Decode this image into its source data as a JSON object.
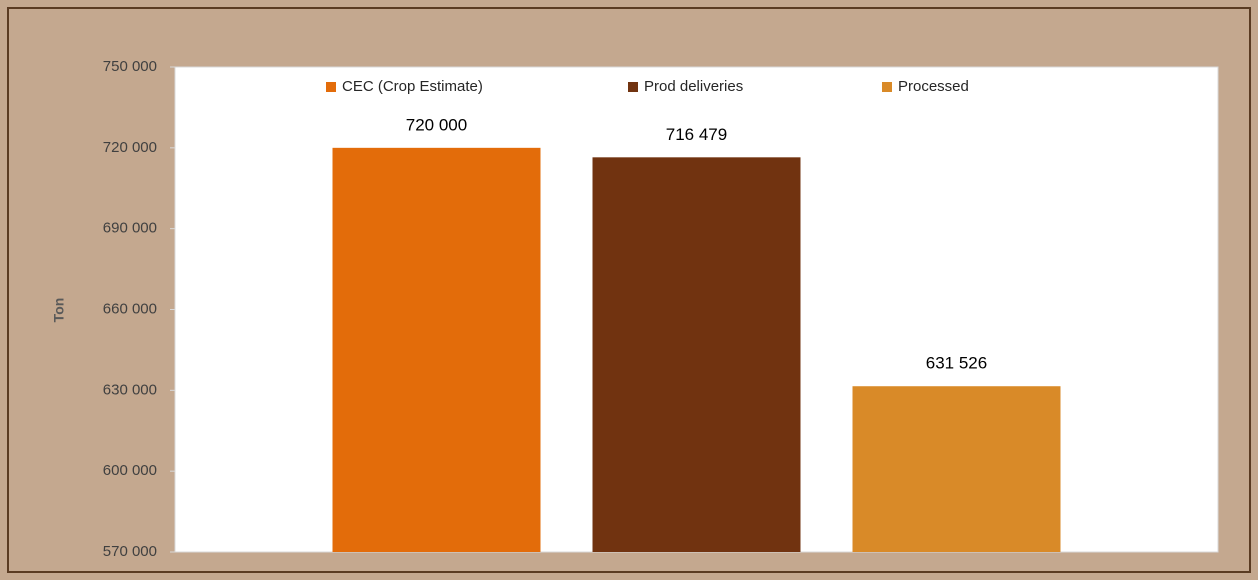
{
  "chart_data": {
    "type": "bar",
    "y_label": "Ton",
    "categories": [
      null
    ],
    "series": [
      {
        "name": "CEC (Crop Estimate)",
        "color": "#e36c0a",
        "values": [
          720000
        ],
        "value_labels": [
          "720 000"
        ]
      },
      {
        "name": "Prod deliveries",
        "color": "#713310",
        "values": [
          716479
        ],
        "value_labels": [
          "716 479"
        ]
      },
      {
        "name": "Processed",
        "color": "#d98a28",
        "values": [
          631526
        ],
        "value_labels": [
          "631 526"
        ]
      }
    ],
    "ylim": [
      570000,
      750000
    ],
    "yticks": [
      {
        "value": 570000,
        "label": "570 000"
      },
      {
        "value": 600000,
        "label": "600 000"
      },
      {
        "value": 630000,
        "label": "630 000"
      },
      {
        "value": 660000,
        "label": "660 000"
      },
      {
        "value": 690000,
        "label": "690 000"
      },
      {
        "value": 720000,
        "label": "720 000"
      },
      {
        "value": 750000,
        "label": "750 000"
      }
    ],
    "grid": false,
    "legend": "top"
  }
}
